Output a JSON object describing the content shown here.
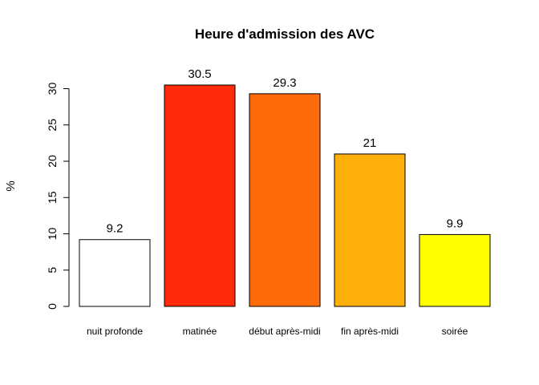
{
  "chart_data": {
    "type": "bar",
    "title": "Heure d'admission des AVC",
    "xlabel": "",
    "ylabel": "%",
    "categories": [
      "nuit profonde",
      "matinée",
      "début après-midi",
      "fin après-midi",
      "soirée"
    ],
    "values": [
      9.2,
      30.5,
      29.3,
      21,
      9.9
    ],
    "value_labels": [
      "9.2",
      "30.5",
      "29.3",
      "21",
      "9.9"
    ],
    "colors": [
      "#FFFFFF",
      "#FF2A0A",
      "#FF6A0A",
      "#FFAF0A",
      "#FFFF00"
    ],
    "y_ticks": [
      0,
      5,
      10,
      15,
      20,
      25,
      30
    ],
    "ylim": [
      0,
      30.5
    ],
    "grid": false,
    "legend": "none"
  }
}
